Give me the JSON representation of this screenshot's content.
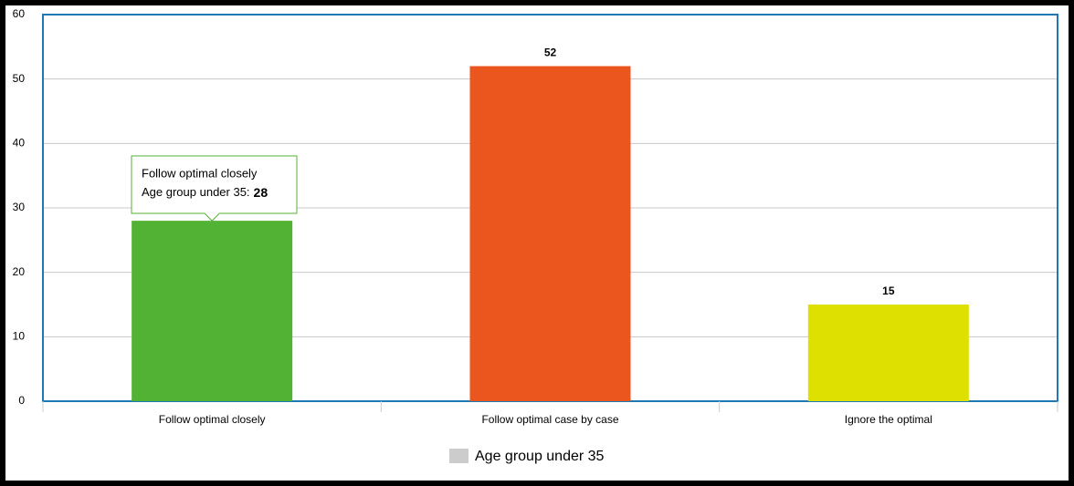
{
  "chart_data": {
    "type": "bar",
    "categories": [
      "Follow optimal closely",
      "Follow optimal case by case",
      "Ignore the optimal"
    ],
    "series": [
      {
        "name": "Age group under 35",
        "color": "#cccccc",
        "values": [
          28,
          52,
          15
        ],
        "point_colors": [
          "#52b234",
          "#eb561e",
          "#dde000"
        ]
      }
    ],
    "ylim": [
      0,
      60
    ],
    "yticks": [
      0,
      10,
      20,
      30,
      40,
      50,
      60
    ],
    "grid": true,
    "legend": "bottom",
    "tooltip": {
      "label": "Age group under 35:"
    }
  }
}
